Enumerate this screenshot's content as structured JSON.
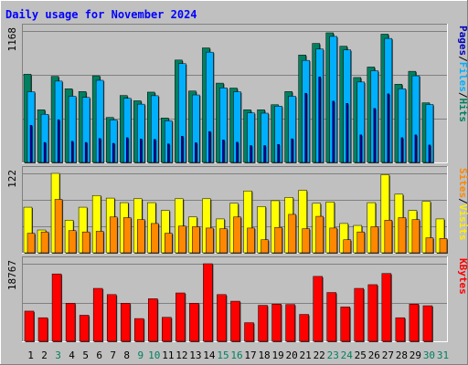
{
  "chart_data": [
    {
      "type": "bar",
      "panel": "top",
      "title": "Daily usage for November 2024",
      "categories": [
        "1",
        "2",
        "3",
        "4",
        "5",
        "6",
        "7",
        "8",
        "9",
        "10",
        "11",
        "12",
        "13",
        "14",
        "15",
        "16",
        "17",
        "18",
        "19",
        "20",
        "21",
        "22",
        "23",
        "24",
        "25",
        "26",
        "27",
        "28",
        "29",
        "30",
        "31"
      ],
      "y_label": "1168",
      "ylim": [
        0,
        1168
      ],
      "grid": true,
      "legend_placement": "right",
      "legend": [
        {
          "name": "Pages",
          "color": "#0000bb"
        },
        {
          "name": "Files",
          "color": "#00b0ff"
        },
        {
          "name": "Hits",
          "color": "#008060"
        }
      ],
      "series": [
        {
          "name": "Hits",
          "color": "#008060",
          "values": [
            784,
            468,
            765,
            655,
            630,
            770,
            400,
            595,
            548,
            625,
            395,
            910,
            635,
            1018,
            705,
            661,
            468,
            468,
            513,
            630,
            955,
            1058,
            1152,
            1033,
            755,
            848,
            1140,
            695,
            810,
            530,
            null
          ]
        },
        {
          "name": "Files",
          "color": "#00b0ff",
          "values": [
            628,
            428,
            723,
            588,
            578,
            730,
            378,
            570,
            518,
            593,
            370,
            878,
            600,
            980,
            663,
            628,
            440,
            438,
            500,
            588,
            907,
            1008,
            1120,
            1000,
            715,
            815,
            1102,
            655,
            770,
            515,
            null
          ]
        },
        {
          "name": "Pages",
          "color": "#0000bb",
          "values": [
            330,
            178,
            380,
            188,
            178,
            213,
            170,
            220,
            208,
            205,
            165,
            233,
            175,
            275,
            200,
            180,
            150,
            150,
            160,
            210,
            615,
            760,
            545,
            525,
            245,
            480,
            610,
            220,
            245,
            155,
            null
          ]
        }
      ]
    },
    {
      "type": "bar",
      "panel": "middle",
      "categories": [
        "1",
        "2",
        "3",
        "4",
        "5",
        "6",
        "7",
        "8",
        "9",
        "10",
        "11",
        "12",
        "13",
        "14",
        "15",
        "16",
        "17",
        "18",
        "19",
        "20",
        "21",
        "22",
        "23",
        "24",
        "25",
        "26",
        "27",
        "28",
        "29",
        "30",
        "31"
      ],
      "y_label": "122",
      "ylim": [
        0,
        122
      ],
      "grid": true,
      "legend_placement": "right",
      "legend": [
        {
          "name": "Sites",
          "color": "#ff8800"
        },
        {
          "name": "Visits",
          "color": "#ffee00"
        }
      ],
      "series": [
        {
          "name": "Visits",
          "color": "#ffff00",
          "values": [
            70,
            35,
            122,
            50,
            70,
            88,
            84,
            77,
            83,
            77,
            65,
            83,
            55,
            83,
            52,
            76,
            95,
            71,
            80,
            85,
            96,
            76,
            78,
            45,
            42,
            77,
            120,
            90,
            65,
            79,
            52
          ]
        },
        {
          "name": "Sites",
          "color": "#ff8800",
          "values": [
            30,
            32,
            82,
            34,
            32,
            33,
            55,
            54,
            51,
            45,
            30,
            41,
            40,
            38,
            37,
            55,
            38,
            20,
            39,
            59,
            37,
            56,
            38,
            20,
            32,
            40,
            50,
            54,
            51,
            23,
            22
          ]
        }
      ]
    },
    {
      "type": "bar",
      "panel": "bottom",
      "categories": [
        "1",
        "2",
        "3",
        "4",
        "5",
        "6",
        "7",
        "8",
        "9",
        "10",
        "11",
        "12",
        "13",
        "14",
        "15",
        "16",
        "17",
        "18",
        "19",
        "20",
        "21",
        "22",
        "23",
        "24",
        "25",
        "26",
        "27",
        "28",
        "29",
        "30",
        "31"
      ],
      "y_label": "18767",
      "ylim": [
        0,
        18767
      ],
      "grid": true,
      "legend_placement": "right",
      "legend": [
        {
          "name": "KBytes",
          "color": "#ff0000"
        }
      ],
      "series": [
        {
          "name": "KBytes",
          "color": "#ff0000",
          "values": [
            7300,
            5700,
            16300,
            9200,
            6300,
            12800,
            11300,
            9200,
            5500,
            10300,
            5800,
            11700,
            9200,
            18767,
            11300,
            9700,
            4500,
            8700,
            9000,
            8900,
            6500,
            15700,
            11800,
            8300,
            12800,
            13700,
            16400,
            5700,
            9000,
            8600,
            null
          ]
        }
      ]
    }
  ],
  "x_axis": {
    "labels": [
      "1",
      "2",
      "3",
      "4",
      "5",
      "6",
      "7",
      "8",
      "9",
      "10",
      "11",
      "12",
      "13",
      "14",
      "15",
      "16",
      "17",
      "18",
      "19",
      "20",
      "21",
      "22",
      "23",
      "24",
      "25",
      "26",
      "27",
      "28",
      "29",
      "30",
      "31"
    ],
    "label_colors": [
      "#000000",
      "#000000",
      "#008060",
      "#000000",
      "#000000",
      "#000000",
      "#000000",
      "#000000",
      "#008060",
      "#008060",
      "#000000",
      "#000000",
      "#000000",
      "#000000",
      "#008060",
      "#008060",
      "#000000",
      "#000000",
      "#000000",
      "#000000",
      "#000000",
      "#000000",
      "#008060",
      "#008060",
      "#000000",
      "#000000",
      "#000000",
      "#000000",
      "#000000",
      "#008060",
      "#008060"
    ]
  },
  "colors": {
    "background": "#c0c0c0",
    "plot_bg": "#c0c0c0",
    "bevel_light": "#ffffff",
    "bevel_dark": "#808080",
    "gridline": "#808080",
    "title_text": "#0000ff"
  }
}
